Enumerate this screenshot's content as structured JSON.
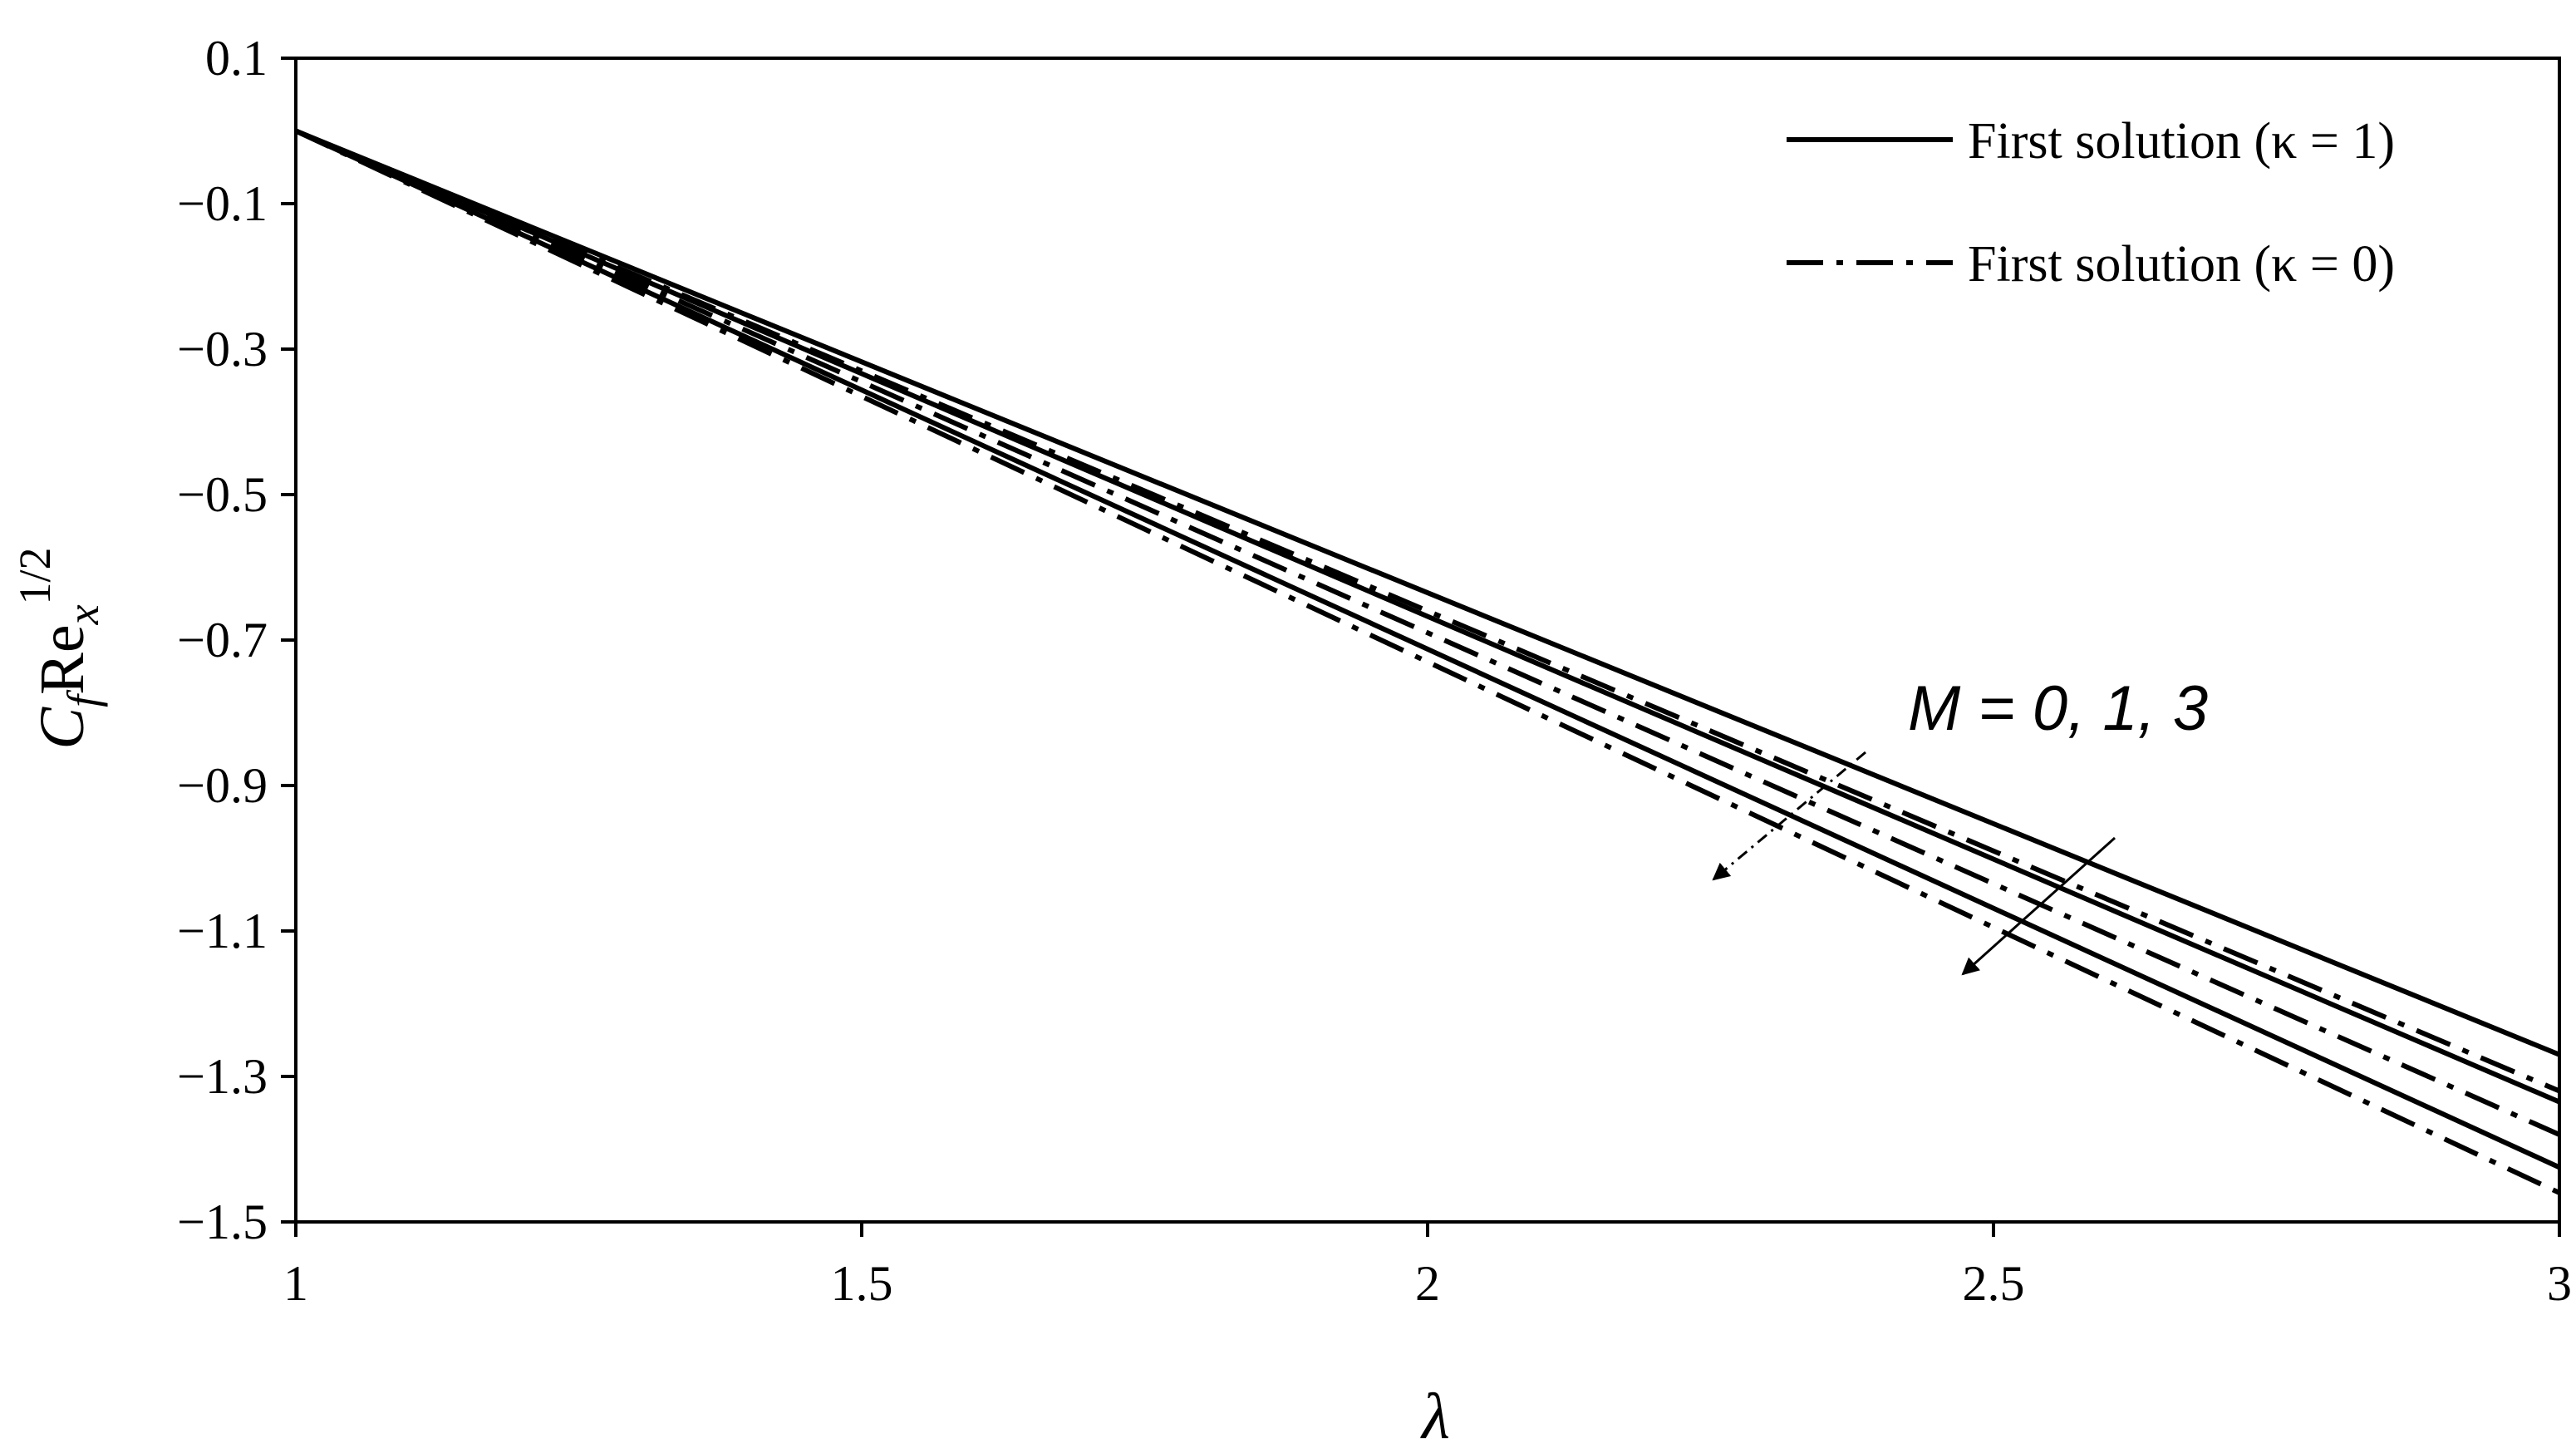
{
  "chart_data": {
    "type": "line",
    "title": "",
    "xlabel": "λ",
    "ylabel": {
      "base": "C",
      "sub1": "f",
      "mid": "Re",
      "sub2": "x",
      "sup": "1/2"
    },
    "xlim": [
      1,
      3
    ],
    "ylim": [
      -1.5,
      0.1
    ],
    "xticks": [
      "1",
      "1.5",
      "2",
      "2.5",
      "3"
    ],
    "yticks": [
      "0.1",
      "−0.1",
      "−0.3",
      "−0.5",
      "−0.7",
      "−0.9",
      "−1.1",
      "−1.3",
      "−1.5"
    ],
    "grid": false,
    "legend_position": "top-right",
    "legend": [
      {
        "label": "First solution (κ = 1)",
        "style": "solid"
      },
      {
        "label": "First solution (κ = 0)",
        "style": "dashdot"
      }
    ],
    "annotation": "M = 0, 1, 3",
    "series": [
      {
        "kappa": 1,
        "M": 0,
        "style": "solid",
        "x": [
          1,
          3
        ],
        "y": [
          0.0,
          -1.27
        ]
      },
      {
        "kappa": 1,
        "M": 1,
        "style": "solid",
        "x": [
          1,
          3
        ],
        "y": [
          0.0,
          -1.335
        ]
      },
      {
        "kappa": 1,
        "M": 3,
        "style": "solid",
        "x": [
          1,
          3
        ],
        "y": [
          0.0,
          -1.425
        ]
      },
      {
        "kappa": 0,
        "M": 0,
        "style": "dashdot",
        "x": [
          1,
          3
        ],
        "y": [
          0.0,
          -1.32
        ]
      },
      {
        "kappa": 0,
        "M": 1,
        "style": "dashdot",
        "x": [
          1,
          3
        ],
        "y": [
          0.0,
          -1.38
        ]
      },
      {
        "kappa": 0,
        "M": 3,
        "style": "dashdot",
        "x": [
          1,
          3
        ],
        "y": [
          0.0,
          -1.46
        ]
      }
    ],
    "colors": {
      "line": "#000000",
      "background": "#ffffff"
    }
  }
}
